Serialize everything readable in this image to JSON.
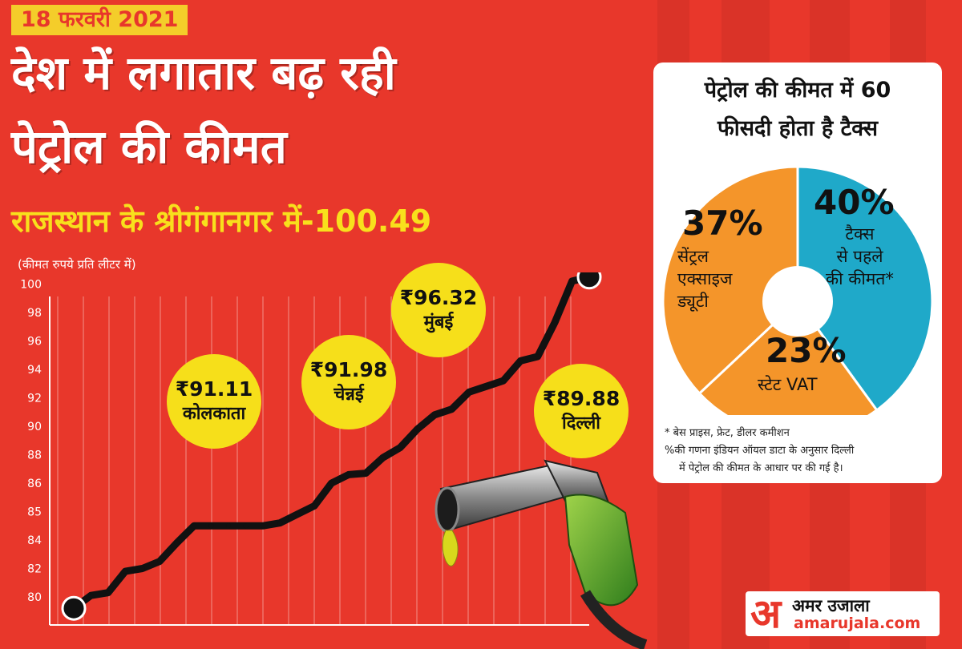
{
  "header": {
    "date": "18 फरवरी 2021",
    "title_line1": "देश में लगातार बढ़ रही",
    "title_line2": "पेट्रोल की कीमत",
    "subtitle": "राजस्थान के श्रीगंगानगर में-100.49",
    "unit_note": "(कीमत रुपये प्रति लीटर में)"
  },
  "city_prices": [
    {
      "price": "₹91.11",
      "city": "कोलकाता"
    },
    {
      "price": "₹91.98",
      "city": "चेन्नई"
    },
    {
      "price": "₹96.32",
      "city": "मुंबई"
    },
    {
      "price": "₹89.88",
      "city": "दिल्ली"
    }
  ],
  "pie": {
    "title_line1": "पेट्रोल की कीमत में 60",
    "title_line2": "फीसदी होता है टैक्स",
    "footnote1": "* बेस प्राइस, फ्रेट, डीलर कमीशन",
    "footnote2": "%की गणना इंडियन ऑयल डाटा के अनुसार दिल्ली",
    "footnote3": "में पेट्रोल की कीमत के आधार पर की गई है।"
  },
  "brand": {
    "name": "अमर उजाला",
    "site": "amarujala.com",
    "mark": "अ"
  },
  "colors": {
    "background": "#e8372b",
    "accent_yellow": "#f6df1a",
    "pie_orange": "#f4952a",
    "pie_blue": "#1fa9c9"
  },
  "chart_data": [
    {
      "type": "line",
      "title": "",
      "ylabel": "",
      "xlabel": "",
      "yticks": [
        "80",
        "82",
        "84",
        "85",
        "86",
        "88",
        "90",
        "92",
        "94",
        "96",
        "98",
        "100"
      ],
      "grid": "vertical",
      "y": [
        79.2,
        80.1,
        80.3,
        81.8,
        82.0,
        82.5,
        83.8,
        84.5,
        84.5,
        84.5,
        84.5,
        84.5,
        84.6,
        84.9,
        85.2,
        86.0,
        86.6,
        86.7,
        87.8,
        88.5,
        89.8,
        90.8,
        91.2,
        92.4,
        92.8,
        93.2,
        94.6,
        94.9,
        97.3,
        100.2,
        100.49
      ],
      "start_marker": true,
      "end_marker": true
    },
    {
      "type": "pie",
      "slices": [
        {
          "label": "टैक्स से पहले की कीमत*",
          "label_lines": [
            "टैक्स",
            "से पहले",
            "की कीमत*"
          ],
          "pct_text": "40%",
          "value": 40
        },
        {
          "label": "स्टेट VAT",
          "label_lines": [
            "स्टेट VAT"
          ],
          "pct_text": "23%",
          "value": 23
        },
        {
          "label": "सेंट्रल एक्साइज ड्यूटी",
          "label_lines": [
            "सेंट्रल",
            "एक्साइज",
            "ड्यूटी"
          ],
          "pct_text": "37%",
          "value": 37
        }
      ]
    }
  ]
}
